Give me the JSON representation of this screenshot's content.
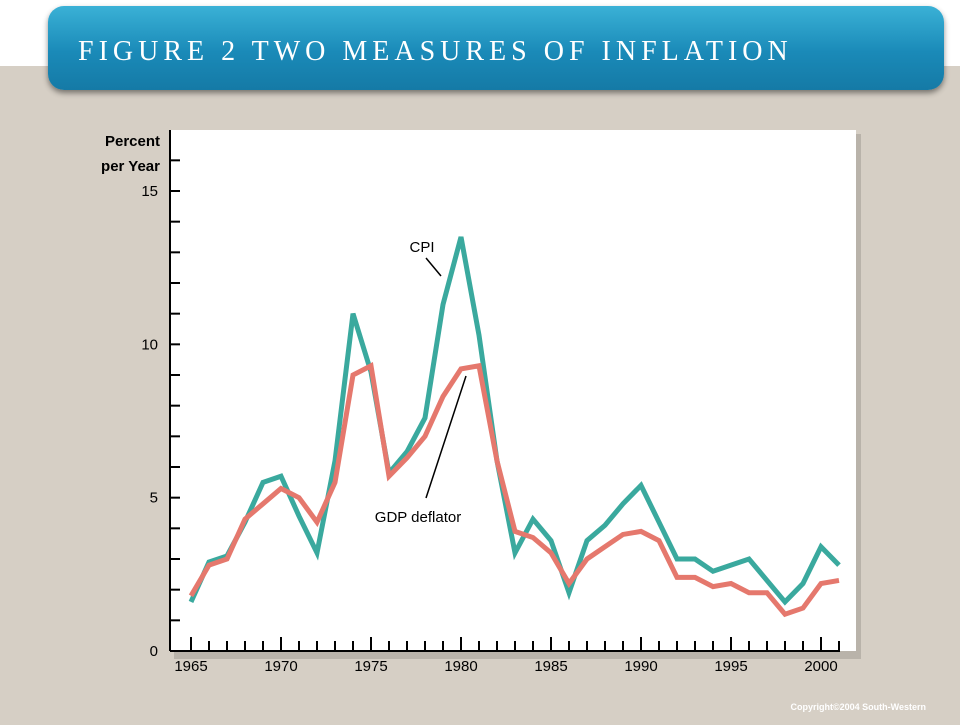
{
  "header": {
    "title": "FIGURE 2 TWO MEASURES OF INFLATION"
  },
  "footer": {
    "copyright": "Copyright©2004 South-Western"
  },
  "colors": {
    "cpi": "#3aa99e",
    "gdp": "#e5786d",
    "panel": "#ffffff",
    "background": "#d6cfc5"
  },
  "chart_data": {
    "type": "line",
    "ylabel_line1": "Percent",
    "ylabel_line2": "per Year",
    "xlim": [
      1965,
      2001
    ],
    "ylim": [
      0,
      15
    ],
    "x_ticks": [
      "1965",
      "1970",
      "1975",
      "1980",
      "1985",
      "1990",
      "1995",
      "2000"
    ],
    "y_ticks": [
      "0",
      "5",
      "10",
      "15"
    ],
    "grid": false,
    "x": [
      1965,
      1966,
      1967,
      1968,
      1969,
      1970,
      1971,
      1972,
      1973,
      1974,
      1975,
      1976,
      1977,
      1978,
      1979,
      1980,
      1981,
      1982,
      1983,
      1984,
      1985,
      1986,
      1987,
      1988,
      1989,
      1990,
      1991,
      1992,
      1993,
      1994,
      1995,
      1996,
      1997,
      1998,
      1999,
      2000,
      2001
    ],
    "series": [
      {
        "name": "CPI",
        "values": [
          1.6,
          2.9,
          3.1,
          4.2,
          5.5,
          5.7,
          4.4,
          3.2,
          6.2,
          11.0,
          9.1,
          5.8,
          6.5,
          7.6,
          11.3,
          13.5,
          10.3,
          6.2,
          3.2,
          4.3,
          3.6,
          1.9,
          3.6,
          4.1,
          4.8,
          5.4,
          4.2,
          3.0,
          3.0,
          2.6,
          2.8,
          3.0,
          2.3,
          1.6,
          2.2,
          3.4,
          2.8
        ]
      },
      {
        "name": "GDP deflator",
        "values": [
          1.8,
          2.8,
          3.0,
          4.3,
          4.8,
          5.3,
          5.0,
          4.2,
          5.5,
          9.0,
          9.3,
          5.7,
          6.3,
          7.0,
          8.3,
          9.2,
          9.3,
          6.2,
          3.9,
          3.7,
          3.2,
          2.2,
          3.0,
          3.4,
          3.8,
          3.9,
          3.6,
          2.4,
          2.4,
          2.1,
          2.2,
          1.9,
          1.9,
          1.2,
          1.4,
          2.2,
          2.3
        ]
      }
    ],
    "annotations": [
      {
        "text": "CPI",
        "series": "CPI"
      },
      {
        "text": "GDP deflator",
        "series": "GDP deflator"
      }
    ]
  }
}
